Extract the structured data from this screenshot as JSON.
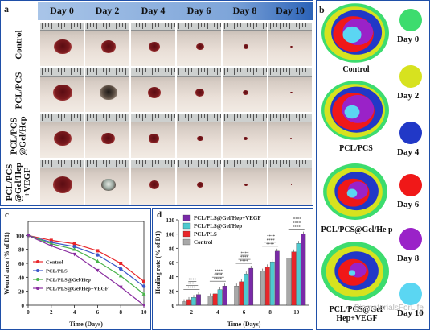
{
  "panel_a": {
    "letter": "a",
    "days": [
      "Day 0",
      "Day 2",
      "Day 4",
      "Day 6",
      "Day 8",
      "Day 10"
    ],
    "groups": [
      "Control",
      "PCL/PCS",
      "PCL/PCS @Gel/Hep",
      "PCL/PCS @Gel/Hep +VEGF"
    ]
  },
  "panel_b": {
    "letter": "b",
    "maps": [
      "Control",
      "PCL/PCS",
      "PCL/PCS@Gel/He p",
      "PCL/PCS@Gel/ Hep+VEGF"
    ],
    "legend": [
      {
        "label": "Day 0",
        "color": "#3ddc6e"
      },
      {
        "label": "Day 2",
        "color": "#d7e21f"
      },
      {
        "label": "Day 4",
        "color": "#2138c7"
      },
      {
        "label": "Day 6",
        "color": "#f01818"
      },
      {
        "label": "Day 8",
        "color": "#9a22c8"
      },
      {
        "label": "Day 10",
        "color": "#5bd6f2"
      }
    ]
  },
  "watermark": "BiomaterialsForLife",
  "chart_data": [
    {
      "panel": "c",
      "type": "line",
      "xlabel": "Time (Days)",
      "ylabel": "Wound area (% of D1)",
      "x": [
        0,
        2,
        4,
        6,
        8,
        10
      ],
      "xlim": [
        0,
        10
      ],
      "ylim": [
        0,
        120
      ],
      "yticks": [
        0,
        20,
        40,
        60,
        80,
        100
      ],
      "series": [
        {
          "name": "Control",
          "color": "#e8262a",
          "marker": "square",
          "values": [
            100,
            93,
            88,
            78,
            60,
            34
          ]
        },
        {
          "name": "PCL/PLS",
          "color": "#3b57c9",
          "marker": "circle",
          "values": [
            100,
            90,
            84,
            72,
            52,
            27
          ]
        },
        {
          "name": "PCL/PLS@Gel/Hep",
          "color": "#49b34a",
          "marker": "triangle",
          "values": [
            100,
            88,
            80,
            63,
            42,
            16
          ]
        },
        {
          "name": "PCL/PLS@Gel/Hep+VEGF",
          "color": "#8a2ea0",
          "marker": "triangle-down",
          "values": [
            100,
            85,
            73,
            50,
            26,
            0
          ]
        }
      ]
    },
    {
      "panel": "d",
      "type": "bar",
      "xlabel": "Time (Days)",
      "ylabel": "Healing rate (% of D1)",
      "categories": [
        "2",
        "4",
        "6",
        "8",
        "10"
      ],
      "ylim": [
        0,
        120
      ],
      "yticks": [
        0,
        20,
        40,
        60,
        80,
        100,
        120
      ],
      "series": [
        {
          "name": "Control",
          "color": "#a8a8a8",
          "values": [
            5,
            13,
            27,
            48,
            66
          ]
        },
        {
          "name": "PCL/PLS",
          "color": "#e8262a",
          "values": [
            8,
            16,
            33,
            54,
            75
          ]
        },
        {
          "name": "PCL/PLS@Gel/Hep",
          "color": "#4ec9cf",
          "values": [
            11,
            22,
            44,
            61,
            87
          ]
        },
        {
          "name": "PCL/PLS@Gel/Hep+VEGF",
          "color": "#7a2aa8",
          "values": [
            15,
            27,
            52,
            76,
            100
          ]
        }
      ],
      "legend_order": [
        "PCL/PLS@Gel/Hep+VEGF",
        "PCL/PLS@Gel/Hep",
        "PCL/PLS",
        "Control"
      ],
      "significance": "****"
    }
  ]
}
